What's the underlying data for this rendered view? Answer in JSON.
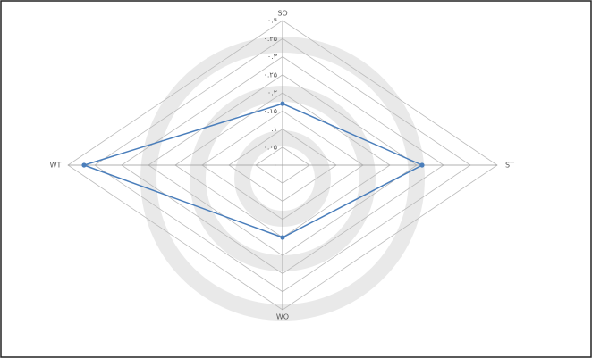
{
  "chart_data": {
    "type": "radar",
    "categories": [
      "SO",
      "ST",
      "WO",
      "WT"
    ],
    "series": [
      {
        "color": "#4a7ebb",
        "values": [
          0.17,
          0.26,
          0.2,
          0.37
        ]
      }
    ],
    "rlim": [
      0,
      0.4
    ],
    "rticks": [
      {
        "value": 0,
        "label": "۰"
      },
      {
        "value": 0.05,
        "label": "۰.۰۵"
      },
      {
        "value": 0.1,
        "label": "۰.۱"
      },
      {
        "value": 0.15,
        "label": "۰.۱۵"
      },
      {
        "value": 0.2,
        "label": "۰.۲"
      },
      {
        "value": 0.25,
        "label": "۰.۲۵"
      },
      {
        "value": 0.3,
        "label": "۰.۳"
      },
      {
        "value": 0.35,
        "label": "۰.۳۵"
      },
      {
        "value": 0.4,
        "label": "۰.۴"
      }
    ],
    "grid": true
  }
}
